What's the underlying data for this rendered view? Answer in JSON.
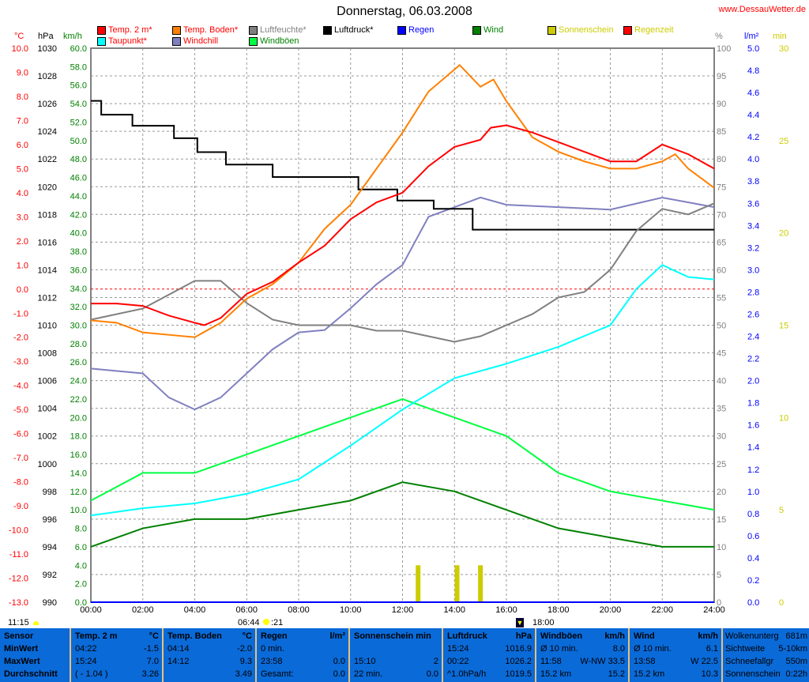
{
  "title": "Donnerstag, 06.03.2008",
  "site": "www.DessauWetter.de",
  "legend": [
    {
      "label": "Temp. 2 m*",
      "color": "#ff0000",
      "text_color": "#ff0000"
    },
    {
      "label": "Temp. Boden*",
      "color": "#ff8000",
      "text_color": "#ff0000"
    },
    {
      "label": "Luftfeuchte*",
      "color": "#808080",
      "text_color": "#808080"
    },
    {
      "label": "Luftdruck*",
      "color": "#000000",
      "text_color": "#000000"
    },
    {
      "label": "Regen",
      "color": "#0000ff",
      "text_color": "#0000ff"
    },
    {
      "label": "Wind",
      "color": "#008000",
      "text_color": "#008000"
    },
    {
      "label": "Sonnenschein",
      "color": "#cccc00",
      "text_color": "#cccc00"
    },
    {
      "label": "Regenzeit",
      "color": "#ff0000",
      "text_color": "#cccc00"
    },
    {
      "label": "Taupunkt*",
      "color": "#00ffff",
      "text_color": "#ff0000"
    },
    {
      "label": "Windchill",
      "color": "#8080c0",
      "text_color": "#ff0000"
    },
    {
      "label": "Windböen",
      "color": "#00ff40",
      "text_color": "#008000"
    }
  ],
  "units": {
    "c": "°C",
    "hpa": "hPa",
    "kmh": "km/h",
    "pct": "%",
    "lm2": "l/m²",
    "min": "min"
  },
  "chart_data": {
    "type": "line",
    "title": "Donnerstag, 06.03.2008",
    "x_ticks": [
      "00:00",
      "02:00",
      "04:00",
      "06:00",
      "08:00",
      "10:00",
      "12:00",
      "14:00",
      "16:00",
      "18:00",
      "20:00",
      "22:00",
      "24:00"
    ],
    "xlim": [
      0,
      24
    ],
    "axes": {
      "c": {
        "lim": [
          -13,
          10
        ],
        "step": 1,
        "color": "#ff0000"
      },
      "hpa": {
        "lim": [
          990,
          1030
        ],
        "step": 2,
        "color": "#000000"
      },
      "kmh": {
        "lim": [
          0,
          60
        ],
        "step": 2,
        "color": "#008000"
      },
      "pct": {
        "lim": [
          0,
          100
        ],
        "step": 5,
        "color": "#808080"
      },
      "lm2": {
        "lim": [
          0,
          5
        ],
        "step": 0.2,
        "color": "#0000ff"
      },
      "min": {
        "lim": [
          0,
          30
        ],
        "step": 5,
        "color": "#cccc00"
      }
    },
    "zero_line_c": 0,
    "series": [
      {
        "name": "Temp. 2 m",
        "axis": "c",
        "color": "#ff0000",
        "x": [
          0,
          1,
          2,
          3,
          4,
          4.37,
          5,
          6,
          7,
          8,
          9,
          10,
          11,
          12,
          13,
          14,
          15,
          15.4,
          16,
          17,
          18,
          19,
          20,
          21,
          22,
          23,
          24
        ],
        "y": [
          -0.6,
          -0.6,
          -0.7,
          -1.1,
          -1.4,
          -1.5,
          -1.2,
          -0.2,
          0.3,
          1.1,
          1.8,
          2.9,
          3.6,
          4.0,
          5.1,
          5.9,
          6.2,
          6.7,
          6.8,
          6.5,
          6.1,
          5.7,
          5.3,
          5.3,
          6.0,
          5.6,
          5.0
        ]
      },
      {
        "name": "Temp. Boden",
        "axis": "c",
        "color": "#ff8000",
        "x": [
          0,
          1,
          2,
          3,
          4,
          5,
          6,
          7,
          8,
          9,
          10,
          11,
          12,
          13,
          14.2,
          15,
          15.5,
          16,
          17,
          18,
          19,
          20,
          21,
          22,
          22.5,
          23,
          24
        ],
        "y": [
          -1.3,
          -1.4,
          -1.8,
          -1.9,
          -2.0,
          -1.4,
          -0.4,
          0.2,
          1.1,
          2.5,
          3.5,
          5.0,
          6.5,
          8.2,
          9.3,
          8.4,
          8.7,
          7.8,
          6.3,
          5.7,
          5.3,
          5.0,
          5.0,
          5.3,
          5.6,
          5.0,
          4.2
        ]
      },
      {
        "name": "Luftfeuchte",
        "axis": "pct",
        "color": "#808080",
        "x": [
          0,
          2,
          4,
          5,
          6,
          7,
          8,
          10,
          11,
          12,
          13,
          14,
          15,
          16,
          17,
          18,
          19,
          20,
          21,
          22,
          23,
          24
        ],
        "y": [
          51,
          53,
          58,
          58,
          54,
          51,
          50,
          50,
          49,
          49,
          48,
          47,
          48,
          50,
          52,
          55,
          56,
          60,
          67,
          71,
          70,
          72
        ]
      },
      {
        "name": "Luftdruck",
        "axis": "hpa",
        "color": "#000000",
        "step": true,
        "x": [
          0,
          0.4,
          1.6,
          3.2,
          4.1,
          5.2,
          7.0,
          10.3,
          11.8,
          13.2,
          14.7,
          24
        ],
        "y": [
          1026.2,
          1025.2,
          1024.4,
          1023.5,
          1022.5,
          1021.6,
          1020.7,
          1019.8,
          1019.0,
          1018.4,
          1016.9,
          1016.9
        ]
      },
      {
        "name": "Taupunkt",
        "axis": "c",
        "color": "#00ffff",
        "x": [
          0,
          2,
          4,
          6,
          8,
          10,
          12,
          14,
          16,
          18,
          20,
          21,
          22,
          23,
          24
        ],
        "y": [
          -9.4,
          -9.1,
          -8.9,
          -8.5,
          -7.9,
          -6.5,
          -5.0,
          -3.7,
          -3.1,
          -2.4,
          -1.5,
          0.0,
          1.0,
          0.5,
          0.4
        ]
      },
      {
        "name": "Windchill",
        "axis": "c",
        "color": "#8080c0",
        "x": [
          0,
          2,
          3,
          4,
          5,
          6,
          7,
          8,
          9,
          10,
          11,
          12,
          12.5,
          13,
          14,
          15,
          16,
          18,
          20,
          22,
          24
        ],
        "y": [
          -3.3,
          -3.5,
          -4.5,
          -5.0,
          -4.5,
          -3.5,
          -2.5,
          -1.8,
          -1.7,
          -0.8,
          0.2,
          1.0,
          2.0,
          3.0,
          3.4,
          3.8,
          3.5,
          3.4,
          3.3,
          3.8,
          3.4
        ]
      },
      {
        "name": "Windböen",
        "axis": "kmh",
        "color": "#00ff40",
        "x": [
          0,
          2,
          4,
          6,
          8,
          10,
          12,
          14,
          16,
          18,
          20,
          22,
          24
        ],
        "y": [
          11,
          14,
          14,
          16,
          18,
          20,
          22,
          20,
          18,
          14,
          12,
          11,
          10
        ]
      },
      {
        "name": "Wind",
        "axis": "kmh",
        "color": "#008000",
        "x": [
          0,
          2,
          4,
          6,
          8,
          10,
          12,
          14,
          16,
          18,
          20,
          22,
          24
        ],
        "y": [
          6,
          8,
          9,
          9,
          10,
          11,
          13,
          12,
          10,
          8,
          7,
          6,
          6
        ]
      }
    ],
    "sunshine_bars": {
      "axis": "min",
      "color": "#cccc00",
      "x": [
        12.6,
        14.1,
        15.0
      ],
      "y": [
        2,
        2,
        2
      ]
    },
    "rain_total": 0.0
  },
  "astro": {
    "moonrise": "11:15",
    "sunrise": "06:44",
    "sun_suffix": ":21",
    "sunset": "18:00"
  },
  "table": [
    {
      "rows": [
        [
          "Sensor",
          ""
        ],
        [
          "MinWert",
          ""
        ],
        [
          "MaxWert",
          ""
        ],
        [
          "Durchschnitt",
          ""
        ]
      ],
      "bold": true
    },
    {
      "rows": [
        [
          "Temp. 2 m",
          "°C"
        ],
        [
          "04:22",
          "-1.5"
        ],
        [
          "15:24",
          "7.0"
        ],
        [
          "( - 1.04 )",
          "3.26"
        ]
      ]
    },
    {
      "rows": [
        [
          "Temp. Boden",
          "°C"
        ],
        [
          "04:14",
          "-2.0"
        ],
        [
          "14:12",
          "9.3"
        ],
        [
          "",
          "3.49"
        ]
      ]
    },
    {
      "rows": [
        [
          "Regen",
          "l/m²"
        ],
        [
          "0 min.",
          ""
        ],
        [
          "23:58",
          "0.0"
        ],
        [
          "Gesamt:",
          "0.0"
        ]
      ]
    },
    {
      "rows": [
        [
          "Sonnenschein min",
          ""
        ],
        [
          "",
          ""
        ],
        [
          "15:10",
          "2"
        ],
        [
          "22 min.",
          "0.0"
        ]
      ]
    },
    {
      "rows": [
        [
          "Luftdruck",
          "hPa"
        ],
        [
          "15:24",
          "1016.9"
        ],
        [
          "00:22",
          "1026.2"
        ],
        [
          "^1.0hPa/h",
          "1019.5"
        ]
      ]
    },
    {
      "rows": [
        [
          "Windböen",
          "km/h"
        ],
        [
          "Ø 10 min.",
          "8.0"
        ],
        [
          "11:58",
          "W-NW 33.5"
        ],
        [
          "15.2 km",
          "15.2"
        ]
      ]
    },
    {
      "rows": [
        [
          "Wind",
          "km/h"
        ],
        [
          "Ø 10 min.",
          "6.1"
        ],
        [
          "13:58",
          "W 22.5"
        ],
        [
          "15.2 km",
          "10.3"
        ]
      ]
    },
    {
      "rows": [
        [
          "Wolkenunterg",
          "681m"
        ],
        [
          "Sichtweite",
          "5-10km"
        ],
        [
          "Schneefallgr",
          "550m"
        ],
        [
          "Sonnenschein",
          "0:22h"
        ]
      ],
      "plain": true
    }
  ]
}
